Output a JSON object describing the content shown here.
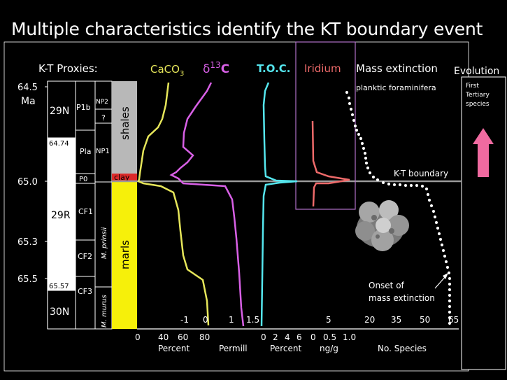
{
  "slide": {
    "title": "Multiple characteristics identify the KT boundary event"
  },
  "headers": {
    "proxies": "K-T Proxies:",
    "caco3": "CaCO",
    "caco3_sub": "3",
    "d13c": "δ",
    "d13c_sup": "13",
    "d13c_c": "C",
    "toc": "T.O.C.",
    "iridium": "Iridium",
    "mass_ext": "Mass extinction",
    "evolution": "Evolution"
  },
  "age_axis": {
    "unit": "Ma",
    "ticks": [
      "64.5",
      "65.0",
      "65.3",
      "65.5"
    ]
  },
  "magnetochron": {
    "labels": [
      "29N",
      "29R",
      "30N"
    ],
    "ages": [
      "64.74",
      "65.57"
    ]
  },
  "biozones": {
    "foram": [
      "P1b",
      "Pla",
      "P0",
      "CF1",
      "CF2",
      "CF3"
    ],
    "nanno": [
      "NP2",
      "?",
      "NP1"
    ],
    "species": [
      "M. prinsii",
      "M. murus"
    ]
  },
  "lithology": {
    "shales": "shales",
    "clay": "clay",
    "marls": "marls"
  },
  "annotations": {
    "planktic": "planktic foraminifera",
    "first_tertiary": [
      "First",
      "Tertiary",
      "species"
    ],
    "kt_boundary": "K-T boundary",
    "onset": [
      "Onset of",
      "mass extinction"
    ]
  },
  "bottom_axes": {
    "caco3_ticks": [
      "0",
      "40",
      "60",
      "80"
    ],
    "caco3_unit": "Percent",
    "d13c_ticks": [
      "-1",
      "0",
      "1"
    ],
    "d13c_unit": "Permill",
    "toc_ticks": [
      "1.5",
      "0",
      "2",
      "4",
      "6"
    ],
    "toc_unit": "Percent",
    "ir_ticks": [
      "0",
      "0.5",
      "1.0",
      "5"
    ],
    "ir_unit": "ng/g",
    "species_ticks": [
      "20",
      "35",
      "50",
      "65"
    ],
    "species_unit": "No. Species"
  },
  "colors": {
    "caco3": "#e6e65a",
    "d13c": "#d860e6",
    "toc": "#55e6ee",
    "iridium": "#ee6a6a",
    "iridium_box": "#b070c8",
    "shales": "#b8b8b8",
    "clay": "#dd2a2a",
    "marls": "#f6f00a",
    "evolution_arrow": "#f06aa0"
  }
}
